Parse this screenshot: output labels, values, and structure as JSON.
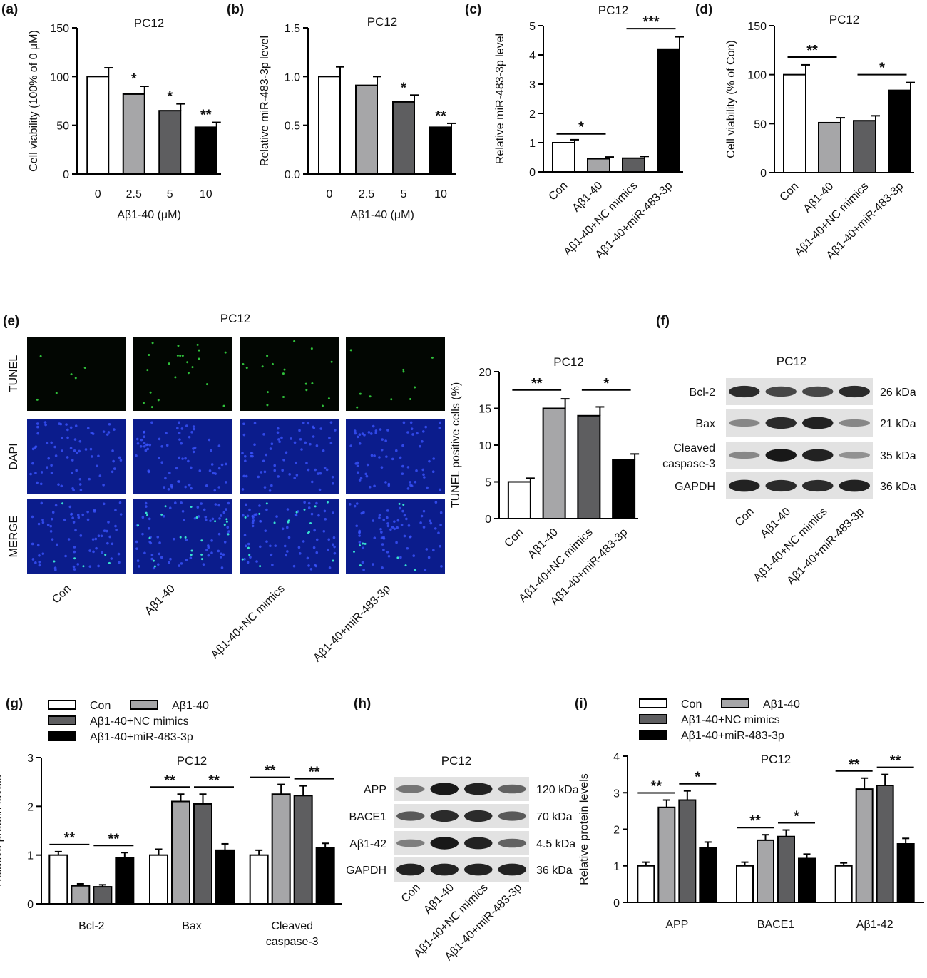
{
  "colors": {
    "c0": "#ffffff",
    "c1": "#a6a6a8",
    "c2": "#5e5e60",
    "c3": "#000000",
    "stroke": "#000000"
  },
  "panels": {
    "a": {
      "label": "(a)",
      "title": "PC12"
    },
    "b": {
      "label": "(b)",
      "title": "PC12"
    },
    "c": {
      "label": "(c)",
      "title": "PC12"
    },
    "d": {
      "label": "(d)",
      "title": "PC12"
    },
    "e": {
      "label": "(e)",
      "title": "PC12"
    },
    "e2": {
      "title": "PC12"
    },
    "f": {
      "label": "(f)",
      "title": "PC12"
    },
    "g": {
      "label": "(g)",
      "title": "PC12"
    },
    "h": {
      "label": "(h)",
      "title": "PC12"
    },
    "i": {
      "label": "(i)",
      "title": "PC12"
    }
  },
  "legend": [
    "Con",
    "Aβ1-40",
    "Aβ1-40+NC mimics",
    "Aβ1-40+miR-483-3p"
  ],
  "microscopy": {
    "rows": [
      "TUNEL",
      "DAPI",
      "MERGE"
    ],
    "cols": [
      "Con",
      "Aβ1-40",
      "Aβ1-40+NC mimics",
      "Aβ1-40+miR-483-3p"
    ]
  },
  "blot_f": {
    "bands": [
      {
        "label": "Bcl-2",
        "size": "26 kDa",
        "intensity": [
          0.85,
          0.7,
          0.7,
          0.85
        ]
      },
      {
        "label": "Bax",
        "size": "21 kDa",
        "intensity": [
          0.35,
          0.85,
          0.9,
          0.35
        ]
      },
      {
        "label": "Cleaved caspase-3",
        "label_lines": [
          "Cleaved",
          "caspase-3"
        ],
        "size": "35 kDa",
        "intensity": [
          0.35,
          0.95,
          0.9,
          0.3
        ]
      },
      {
        "label": "GAPDH",
        "size": "36 kDa",
        "intensity": [
          0.9,
          0.85,
          0.85,
          0.9
        ]
      }
    ],
    "lanes": [
      "Con",
      "Aβ1-40",
      "Aβ1-40+NC mimics",
      "Aβ1-40+miR-483-3p"
    ]
  },
  "blot_h": {
    "bands": [
      {
        "label": "APP",
        "size": "120 kDa",
        "intensity": [
          0.45,
          0.95,
          0.9,
          0.55
        ]
      },
      {
        "label": "BACE1",
        "size": "70 kDa",
        "intensity": [
          0.6,
          0.85,
          0.85,
          0.6
        ]
      },
      {
        "label": "Aβ1-42",
        "size": "4.5 kDa",
        "intensity": [
          0.4,
          0.95,
          0.9,
          0.55
        ]
      },
      {
        "label": "GAPDH",
        "size": "36 kDa",
        "intensity": [
          0.9,
          0.9,
          0.9,
          0.9
        ]
      }
    ],
    "lanes": [
      "Con",
      "Aβ1-40",
      "Aβ1-40+NC mimics",
      "Aβ1-40+miR-483-3p"
    ]
  },
  "chart_data": [
    {
      "id": "a",
      "type": "bar",
      "title": "PC12",
      "xlabel": "Aβ1-40 (μM)",
      "ylabel": "Cell viability (100% of 0 μM)",
      "categories": [
        "0",
        "2.5",
        "5",
        "10"
      ],
      "values": [
        100,
        82,
        65,
        48
      ],
      "errors": [
        9,
        8,
        7,
        5
      ],
      "ylim": [
        0,
        150
      ],
      "yticks": [
        0,
        50,
        100,
        150
      ],
      "ytick_labels": [
        "0",
        "50",
        "100",
        "150"
      ],
      "annotations": [
        {
          "bar": 1,
          "text": "*"
        },
        {
          "bar": 2,
          "text": "*"
        },
        {
          "bar": 3,
          "text": "**"
        }
      ]
    },
    {
      "id": "b",
      "type": "bar",
      "title": "PC12",
      "xlabel": "Aβ1-40 (μM)",
      "ylabel": "Relative miR-483-3p level",
      "categories": [
        "0",
        "2.5",
        "5",
        "10"
      ],
      "values": [
        1.0,
        0.91,
        0.74,
        0.48
      ],
      "errors": [
        0.1,
        0.09,
        0.07,
        0.04
      ],
      "ylim": [
        0,
        1.5
      ],
      "yticks": [
        0,
        0.5,
        1.0,
        1.5
      ],
      "ytick_labels": [
        "0.0",
        "0.5",
        "1.0",
        "1.5"
      ],
      "annotations": [
        {
          "bar": 2,
          "text": "*"
        },
        {
          "bar": 3,
          "text": "**"
        }
      ]
    },
    {
      "id": "c",
      "type": "bar",
      "title": "PC12",
      "xlabel": "",
      "ylabel": "Relative miR-483-3p level",
      "categories": [
        "Con",
        "Aβ1-40",
        "Aβ1-40+NC mimics",
        "Aβ1-40+miR-483-3p"
      ],
      "values": [
        1.0,
        0.45,
        0.47,
        4.2
      ],
      "errors": [
        0.1,
        0.06,
        0.06,
        0.42
      ],
      "ylim": [
        0,
        5
      ],
      "yticks": [
        0,
        1,
        2,
        3,
        4,
        5
      ],
      "ytick_labels": [
        "0",
        "1",
        "2",
        "3",
        "4",
        "5"
      ],
      "comparisons": [
        {
          "from": 0,
          "to": 1,
          "text": "*",
          "y": 1.3
        },
        {
          "from": 2,
          "to": 3,
          "text": "***",
          "y": 4.9
        }
      ]
    },
    {
      "id": "d",
      "type": "bar",
      "title": "PC12",
      "xlabel": "",
      "ylabel": "Cell viability (% of Con)",
      "categories": [
        "Con",
        "Aβ1-40",
        "Aβ1-40+NC mimics",
        "Aβ1-40+miR-483-3p"
      ],
      "values": [
        100,
        51,
        53,
        84
      ],
      "errors": [
        10,
        5,
        5,
        8
      ],
      "ylim": [
        0,
        150
      ],
      "yticks": [
        0,
        50,
        100,
        150
      ],
      "ytick_labels": [
        "0",
        "50",
        "100",
        "150"
      ],
      "comparisons": [
        {
          "from": 0,
          "to": 1,
          "text": "**",
          "y": 118
        },
        {
          "from": 2,
          "to": 3,
          "text": "*",
          "y": 100
        }
      ]
    },
    {
      "id": "e2",
      "type": "bar",
      "title": "PC12",
      "xlabel": "",
      "ylabel": "TUNEL positive cells (%)",
      "categories": [
        "Con",
        "Aβ1-40",
        "Aβ1-40+NC mimics",
        "Aβ1-40+miR-483-3p"
      ],
      "values": [
        5,
        15,
        14,
        8
      ],
      "errors": [
        0.5,
        1.3,
        1.2,
        0.8
      ],
      "ylim": [
        0,
        20
      ],
      "yticks": [
        0,
        5,
        10,
        15,
        20
      ],
      "ytick_labels": [
        "0",
        "5",
        "10",
        "15",
        "20"
      ],
      "comparisons": [
        {
          "from": 0,
          "to": 1,
          "text": "**",
          "y": 17.5
        },
        {
          "from": 2,
          "to": 3,
          "text": "*",
          "y": 17.5
        }
      ]
    },
    {
      "id": "g",
      "type": "bar",
      "title": "PC12",
      "xlabel": "",
      "ylabel": "Relative protein levels",
      "categories": [
        "Bcl-2",
        "Bax",
        "Cleaved caspase-3"
      ],
      "category_lines": [
        [
          "Bcl-2"
        ],
        [
          "Bax"
        ],
        [
          "Cleaved",
          "caspase-3"
        ]
      ],
      "ylim": [
        0,
        3
      ],
      "yticks": [
        0,
        1,
        2,
        3
      ],
      "ytick_labels": [
        "0",
        "1",
        "2",
        "3"
      ],
      "series": [
        {
          "name": "Con",
          "values": [
            1.0,
            1.0,
            1.0
          ],
          "errors": [
            0.07,
            0.12,
            0.1
          ]
        },
        {
          "name": "Aβ1-40",
          "values": [
            0.37,
            2.1,
            2.25
          ],
          "errors": [
            0.04,
            0.15,
            0.2
          ]
        },
        {
          "name": "Aβ1-40+NC mimics",
          "values": [
            0.35,
            2.05,
            2.22
          ],
          "errors": [
            0.04,
            0.2,
            0.2
          ]
        },
        {
          "name": "Aβ1-40+miR-483-3p",
          "values": [
            0.95,
            1.1,
            1.15
          ],
          "errors": [
            0.1,
            0.13,
            0.09
          ]
        }
      ],
      "comparisons": [
        {
          "group": 0,
          "pair": [
            0,
            1
          ],
          "text": "**"
        },
        {
          "group": 0,
          "pair": [
            2,
            3
          ],
          "text": "**"
        },
        {
          "group": 1,
          "pair": [
            0,
            1
          ],
          "text": "**"
        },
        {
          "group": 1,
          "pair": [
            2,
            3
          ],
          "text": "**"
        },
        {
          "group": 2,
          "pair": [
            0,
            1
          ],
          "text": "**"
        },
        {
          "group": 2,
          "pair": [
            2,
            3
          ],
          "text": "**"
        }
      ]
    },
    {
      "id": "i",
      "type": "bar",
      "title": "PC12",
      "xlabel": "",
      "ylabel": "Relative protein levels",
      "categories": [
        "APP",
        "BACE1",
        "Aβ1-42"
      ],
      "category_lines": [
        [
          "APP"
        ],
        [
          "BACE1"
        ],
        [
          "Aβ1-42"
        ]
      ],
      "ylim": [
        0,
        4
      ],
      "yticks": [
        0,
        1,
        2,
        3,
        4
      ],
      "ytick_labels": [
        "0",
        "1",
        "2",
        "3",
        "4"
      ],
      "series": [
        {
          "name": "Con",
          "values": [
            1.0,
            1.0,
            1.0
          ],
          "errors": [
            0.1,
            0.1,
            0.08
          ]
        },
        {
          "name": "Aβ1-40",
          "values": [
            2.6,
            1.7,
            3.1
          ],
          "errors": [
            0.2,
            0.15,
            0.3
          ]
        },
        {
          "name": "Aβ1-40+NC mimics",
          "values": [
            2.8,
            1.8,
            3.2
          ],
          "errors": [
            0.25,
            0.18,
            0.3
          ]
        },
        {
          "name": "Aβ1-40+miR-483-3p",
          "values": [
            1.5,
            1.2,
            1.6
          ],
          "errors": [
            0.15,
            0.12,
            0.15
          ]
        }
      ],
      "comparisons": [
        {
          "group": 0,
          "pair": [
            0,
            1
          ],
          "text": "**"
        },
        {
          "group": 0,
          "pair": [
            2,
            3
          ],
          "text": "*"
        },
        {
          "group": 1,
          "pair": [
            0,
            1
          ],
          "text": "**"
        },
        {
          "group": 1,
          "pair": [
            2,
            3
          ],
          "text": "*"
        },
        {
          "group": 2,
          "pair": [
            0,
            1
          ],
          "text": "**"
        },
        {
          "group": 2,
          "pair": [
            2,
            3
          ],
          "text": "**"
        }
      ]
    }
  ]
}
